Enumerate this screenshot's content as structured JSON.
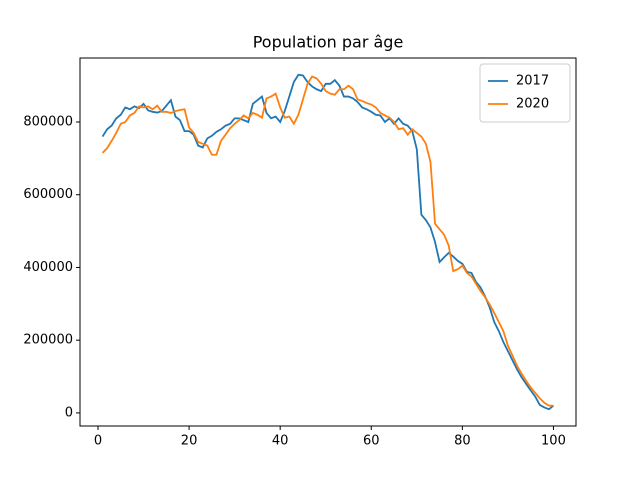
{
  "chart_data": {
    "type": "line",
    "title": "Population par âge",
    "x": [
      1,
      2,
      3,
      4,
      5,
      6,
      7,
      8,
      9,
      10,
      11,
      12,
      13,
      14,
      15,
      16,
      17,
      18,
      19,
      20,
      21,
      22,
      23,
      24,
      25,
      26,
      27,
      28,
      29,
      30,
      31,
      32,
      33,
      34,
      35,
      36,
      37,
      38,
      39,
      40,
      41,
      42,
      43,
      44,
      45,
      46,
      47,
      48,
      49,
      50,
      51,
      52,
      53,
      54,
      55,
      56,
      57,
      58,
      59,
      60,
      61,
      62,
      63,
      64,
      65,
      66,
      67,
      68,
      69,
      70,
      71,
      72,
      73,
      74,
      75,
      76,
      77,
      78,
      79,
      80,
      81,
      82,
      83,
      84,
      85,
      86,
      87,
      88,
      89,
      90,
      91,
      92,
      93,
      94,
      95,
      96,
      97,
      98,
      99,
      100
    ],
    "series": [
      {
        "name": "2017",
        "color": "#1f77b4",
        "values": [
          760000,
          780000,
          790000,
          810000,
          820000,
          840000,
          835000,
          843000,
          838000,
          850000,
          832000,
          828000,
          826000,
          830000,
          845000,
          860000,
          815000,
          805000,
          775000,
          775000,
          765000,
          735000,
          730000,
          755000,
          762000,
          773000,
          780000,
          790000,
          795000,
          810000,
          810000,
          805000,
          800000,
          850000,
          860000,
          870000,
          825000,
          810000,
          815000,
          800000,
          830000,
          870000,
          910000,
          930000,
          928000,
          910000,
          898000,
          890000,
          885000,
          905000,
          905000,
          915000,
          900000,
          870000,
          870000,
          865000,
          855000,
          840000,
          835000,
          828000,
          820000,
          818000,
          800000,
          810000,
          795000,
          810000,
          795000,
          790000,
          775000,
          725000,
          545000,
          530000,
          510000,
          470000,
          415000,
          428000,
          440000,
          430000,
          418000,
          410000,
          388000,
          385000,
          360000,
          345000,
          320000,
          290000,
          250000,
          225000,
          195000,
          170000,
          145000,
          120000,
          98000,
          80000,
          62000,
          45000,
          22000,
          15000,
          10000,
          20000
        ]
      },
      {
        "name": "2020",
        "color": "#ff7f0e",
        "values": [
          715000,
          728000,
          748000,
          770000,
          795000,
          800000,
          818000,
          825000,
          843000,
          840000,
          843000,
          835000,
          845000,
          828000,
          828000,
          825000,
          830000,
          833000,
          835000,
          785000,
          770000,
          745000,
          740000,
          735000,
          710000,
          710000,
          748000,
          765000,
          783000,
          795000,
          805000,
          818000,
          810000,
          825000,
          820000,
          812000,
          865000,
          870000,
          878000,
          840000,
          812000,
          815000,
          795000,
          820000,
          862000,
          905000,
          925000,
          920000,
          905000,
          885000,
          878000,
          875000,
          890000,
          890000,
          900000,
          890000,
          862000,
          858000,
          852000,
          848000,
          840000,
          825000,
          818000,
          812000,
          800000,
          780000,
          783000,
          765000,
          780000,
          770000,
          760000,
          740000,
          690000,
          520000,
          505000,
          490000,
          460000,
          390000,
          395000,
          405000,
          385000,
          375000,
          355000,
          335000,
          318000,
          298000,
          275000,
          250000,
          225000,
          185000,
          158000,
          130000,
          108000,
          88000,
          70000,
          55000,
          40000,
          28000,
          20000,
          20000
        ]
      }
    ],
    "xlim": [
      -3.95,
      104.95
    ],
    "xticks": [
      0,
      20,
      40,
      60,
      80,
      100
    ],
    "ylim": [
      -36000,
      976000
    ],
    "yticks": [
      0,
      200000,
      400000,
      600000,
      800000
    ],
    "grid": false,
    "legend": "upper right"
  }
}
